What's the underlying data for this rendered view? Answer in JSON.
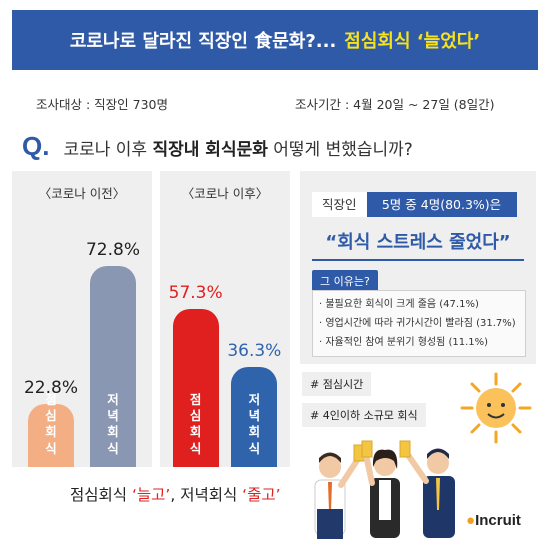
{
  "header": {
    "title_main": "코로나로 달라진 직장인 食문화?...",
    "title_highlight": "점심회식 ‘늘었다’"
  },
  "survey": {
    "target": "조사대상 : 직장인 730명",
    "period": "조사기간 : 4월 20일 ~ 27일 (8일간)"
  },
  "question": {
    "mark": "Q.",
    "text_before": "코로나 이후",
    "text_bold": "직장내 회식문화",
    "text_after": "어떻게 변했습니까?"
  },
  "colors": {
    "brand_blue": "#2f5aa8",
    "before_lunch": "#f3ae84",
    "before_dinner": "#8a97b3",
    "after_lunch": "#e0201f",
    "after_dinner": "#2f64ad"
  },
  "chart_data": [
    {
      "type": "bar",
      "title": "〈코로나 이전〉",
      "categories": [
        "점심회식",
        "저녁회식"
      ],
      "values": [
        22.8,
        72.8
      ],
      "value_labels": [
        "22.8%",
        "72.8%"
      ],
      "ylim": [
        0,
        100
      ]
    },
    {
      "type": "bar",
      "title": "〈코로나 이후〉",
      "categories": [
        "점심회식",
        "저녁회식"
      ],
      "values": [
        57.3,
        36.3
      ],
      "value_labels": [
        "57.3%",
        "36.3%"
      ],
      "ylim": [
        0,
        100
      ]
    }
  ],
  "summary": {
    "label": "직장인",
    "stat": "5명 중 4명(80.3%)은",
    "quote": "“회식 스트레스 줄었다”",
    "reasons_title": "그 이유는?",
    "reasons": [
      "· 불필요한 회식이 크게 줄음 (47.1%)",
      "· 영업시간에 따라 귀가시간이 빨라짐 (31.7%)",
      "· 자율적인 참여 분위기 형성됨 (11.1%)"
    ]
  },
  "hashtags": [
    "# 점심시간",
    "# 4인이하 소규모 회식"
  ],
  "footer": {
    "part1": "점심회식 ",
    "part2": "‘늘고’",
    "part3": ", 저녁회식 ",
    "part4": "‘줄고’",
    "brand": "Incruit"
  }
}
